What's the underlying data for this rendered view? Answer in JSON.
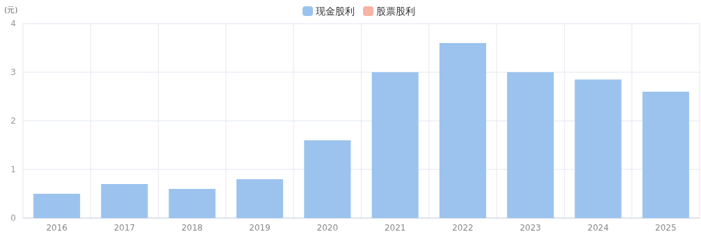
{
  "chart_data": {
    "type": "bar",
    "stacked": true,
    "ylabel": "(元)",
    "categories": [
      "2016",
      "2017",
      "2018",
      "2019",
      "2020",
      "2021",
      "2022",
      "2023",
      "2024",
      "2025"
    ],
    "series": [
      {
        "name": "现金股利",
        "color": "#9bc3ee",
        "values": [
          0.5,
          0.7,
          0.6,
          0.8,
          1.6,
          3.0,
          3.6,
          3.0,
          2.85,
          2.6
        ]
      },
      {
        "name": "股票股利",
        "color": "#f7b3a4",
        "values": [
          0,
          0,
          0,
          0,
          0,
          0,
          0,
          0,
          0,
          0
        ]
      }
    ],
    "ylim": [
      0,
      4
    ],
    "yticks": [
      0,
      1,
      2,
      3,
      4
    ],
    "grid": true,
    "legend": "top"
  }
}
